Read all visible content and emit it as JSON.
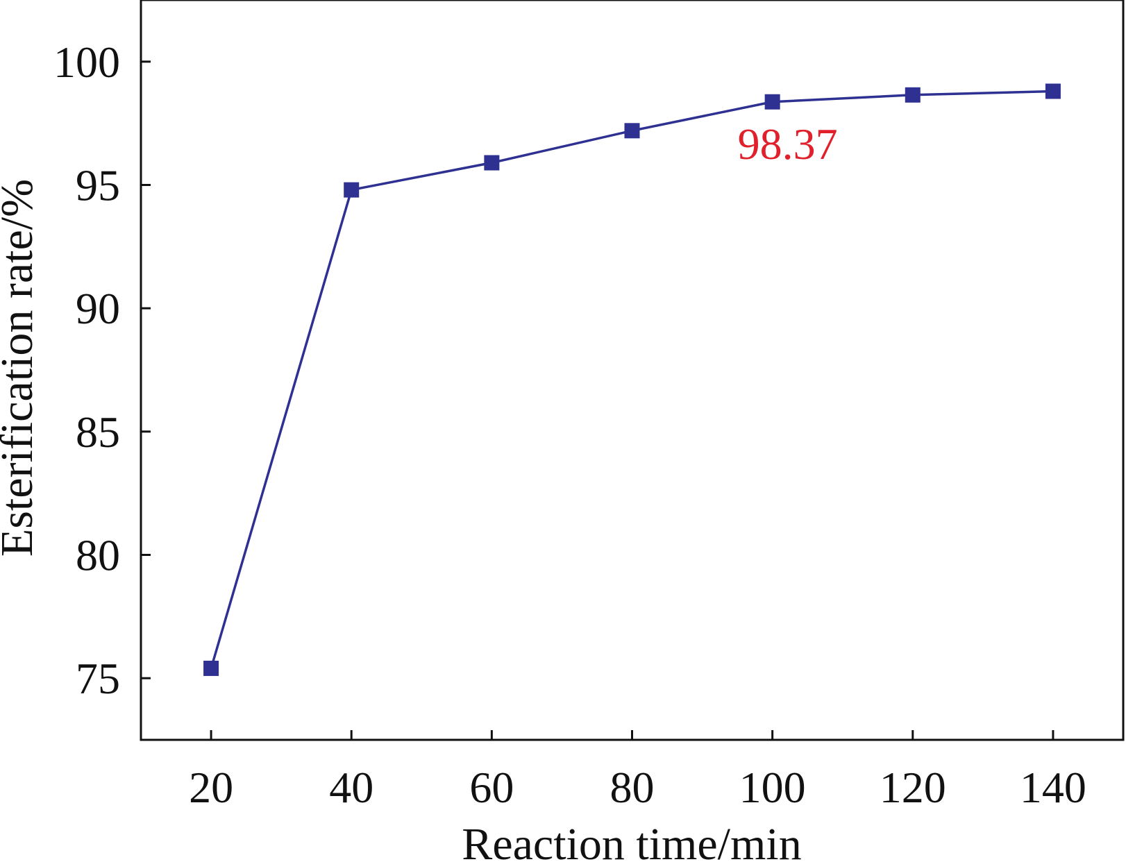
{
  "chart_data": {
    "type": "line",
    "xlabel": "Reaction time/min",
    "ylabel": "Esterification rate/%",
    "xlim": [
      10,
      150
    ],
    "ylim": [
      72.5,
      102.5
    ],
    "x_ticks": [
      20,
      40,
      60,
      80,
      100,
      120,
      140
    ],
    "y_ticks": [
      75,
      80,
      85,
      90,
      95,
      100
    ],
    "grid": false,
    "series": [
      {
        "x": [
          20,
          40,
          60,
          80,
          100,
          120,
          140
        ],
        "y": [
          75.4,
          94.8,
          95.9,
          97.2,
          98.37,
          98.65,
          98.8
        ],
        "color": "#2e3192",
        "marker": "square"
      }
    ],
    "annotations": [
      {
        "text": "98.37",
        "x": 100,
        "y": 98.37,
        "color": "#e0202a"
      }
    ]
  }
}
